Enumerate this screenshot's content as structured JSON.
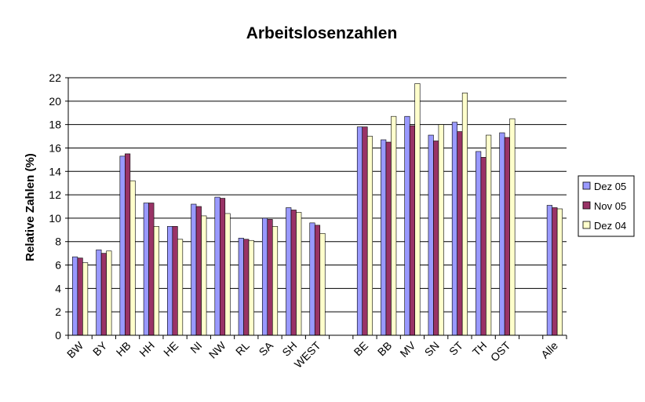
{
  "chart_data": {
    "type": "bar",
    "title": "Arbeitslosenzahlen",
    "xlabel": "",
    "ylabel": "Relative Zahlen (%)",
    "ylim": [
      0,
      22
    ],
    "yticks": [
      0,
      2,
      4,
      6,
      8,
      10,
      12,
      14,
      16,
      18,
      20,
      22
    ],
    "grid": true,
    "legend_position": "right",
    "categories": [
      "BW",
      "BY",
      "HB",
      "HH",
      "HE",
      "NI",
      "NW",
      "RL",
      "SA",
      "SH",
      "WEST",
      "",
      "BE",
      "BB",
      "MV",
      "SN",
      "ST",
      "TH",
      "OST",
      "",
      "Alle"
    ],
    "series": [
      {
        "name": "Dez 05",
        "color": "#9999FF",
        "values": [
          6.7,
          7.3,
          15.3,
          11.3,
          9.3,
          11.2,
          11.8,
          8.3,
          10.0,
          10.9,
          9.6,
          null,
          17.8,
          16.7,
          18.7,
          17.1,
          18.2,
          15.7,
          17.3,
          null,
          11.1
        ]
      },
      {
        "name": "Nov 05",
        "color": "#993366",
        "values": [
          6.6,
          7.0,
          15.5,
          11.3,
          9.3,
          11.0,
          11.7,
          8.2,
          9.9,
          10.7,
          9.4,
          null,
          17.8,
          16.5,
          17.9,
          16.6,
          17.4,
          15.2,
          16.9,
          null,
          10.9
        ]
      },
      {
        "name": "Dez 04",
        "color": "#FFFFCC",
        "values": [
          6.2,
          7.2,
          13.2,
          9.3,
          8.2,
          10.2,
          10.4,
          8.1,
          9.3,
          10.5,
          8.7,
          null,
          17.0,
          18.7,
          21.5,
          18.0,
          20.7,
          17.1,
          18.5,
          null,
          10.8
        ]
      }
    ]
  }
}
